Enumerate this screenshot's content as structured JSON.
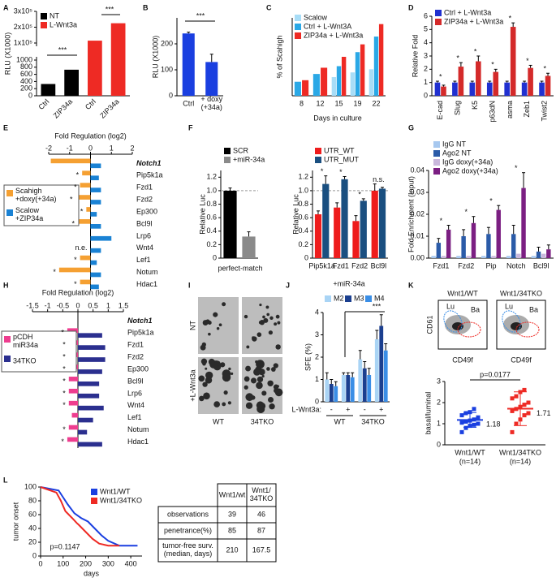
{
  "panels": [
    "A",
    "B",
    "C",
    "D",
    "E",
    "F",
    "G",
    "H",
    "I",
    "J",
    "K",
    "L"
  ],
  "chart_data": [
    {
      "type": "bar",
      "ylabel": "RLU (X1000)",
      "categories": [
        "Ctrl",
        "ZIP34a",
        "Ctrl",
        "ZIP34a"
      ],
      "series": [
        {
          "name": "NT",
          "color": "#000000",
          "values": [
            330,
            730,
            null,
            null
          ]
        },
        {
          "name": "L-Wnt3a",
          "color": "#ee2a24",
          "values": [
            null,
            null,
            115000,
            225000
          ]
        }
      ],
      "ylim": [
        0,
        300000
      ],
      "ybreak": [
        1000,
        100000
      ],
      "yticks": [
        0,
        200,
        400,
        600,
        800,
        1000,
        {
          "value": 100000,
          "label": "1x10⁵"
        },
        {
          "value": 200000,
          "label": "2x10⁵"
        },
        {
          "value": 300000,
          "label": "3x10⁵"
        }
      ],
      "annotations": [
        "***",
        "***"
      ]
    },
    {
      "type": "bar",
      "ylabel": "RLU (X1000)",
      "categories": [
        "Ctrl",
        "+ doxy\n(+34a)"
      ],
      "values": [
        240,
        130
      ],
      "errors": [
        5,
        30
      ],
      "color": "#1a3fe0",
      "ylim": [
        0,
        300
      ],
      "yticks": [
        0,
        100,
        200
      ],
      "annotations": [
        "***"
      ]
    },
    {
      "type": "bar",
      "ylabel": "% of Scahigh",
      "xlabel": "Days in culture",
      "categories": [
        "8",
        "12",
        "15",
        "19",
        "22"
      ],
      "series": [
        {
          "name": "Scalow",
          "color": "#a8ddf7",
          "values": [
            null,
            null,
            12,
            15,
            17
          ]
        },
        {
          "name": "Ctrl + L-Wnt3A",
          "color": "#2aa8e6",
          "values": [
            9,
            14,
            19,
            28,
            38
          ]
        },
        {
          "name": "ZIP34a + L-Wnt3a",
          "color": "#ee2a24",
          "values": [
            10,
            18,
            25,
            33,
            46
          ]
        }
      ],
      "ylim": [
        0,
        50
      ]
    },
    {
      "type": "bar",
      "ylabel": "Relative Fold",
      "categories": [
        "E-cad",
        "Slug",
        "K5",
        "p63dN",
        "asma",
        "Zeb1",
        "Twist2"
      ],
      "series": [
        {
          "name": "Ctrl + L-Wnt3a",
          "color": "#2030d0",
          "values": [
            1,
            1,
            1,
            1,
            1,
            1,
            1
          ],
          "errors": [
            0.1,
            0.1,
            0.1,
            0.1,
            0.1,
            0.1,
            0.1
          ]
        },
        {
          "name": "ZIP34a + L-Wnt3a",
          "color": "#d42a2a",
          "values": [
            0.7,
            2.2,
            2.6,
            1.8,
            5.2,
            2.1,
            1.5
          ],
          "errors": [
            0.1,
            0.3,
            0.4,
            0.2,
            0.3,
            0.2,
            0.2
          ]
        }
      ],
      "ylim": [
        0,
        6
      ],
      "yticks": [
        0,
        1,
        2,
        3,
        4,
        5,
        6
      ],
      "annotations": [
        "*",
        "*",
        "*",
        "*",
        "*",
        "*",
        "*"
      ]
    },
    {
      "type": "hbar",
      "xlabel": "Fold Regulation (log2)",
      "categories": [
        "Notch1",
        "Pip5k1a",
        "Fzd1",
        "Fzd2",
        "Ep300",
        "Bcl9l",
        "Lrp6",
        "Wnt4",
        "Lef1",
        "Notum",
        "Hdac1"
      ],
      "series": [
        {
          "name": "Scahigh\n+doxy(+34a)",
          "color": "#f5a032",
          "values": [
            -1.9,
            -0.4,
            -0.5,
            -0.7,
            -0.2,
            -0.6,
            null,
            null,
            -0.5,
            -1.5,
            -0.5
          ]
        },
        {
          "name": "Scalow\n+ZIP34a",
          "color": "#1a82d4",
          "values": [
            0.5,
            0.4,
            0.5,
            0.5,
            0.3,
            0.5,
            1.0,
            0.5,
            0.3,
            0.5,
            0.4
          ]
        }
      ],
      "xlim": [
        -2,
        2
      ],
      "xticks": [
        -2,
        -1,
        0,
        1,
        2
      ],
      "annotations": [
        "*",
        "*",
        "*",
        "*",
        "*",
        "n.e.",
        "*",
        "*",
        "*"
      ]
    },
    {
      "type": "bar",
      "ylabel": "Relative Luc",
      "xlabel": "perfect-match",
      "categories": [
        "",
        ""
      ],
      "series": [
        {
          "name": "SCR",
          "color": "#000000",
          "values": [
            1.0,
            null
          ],
          "errors": [
            0.04,
            null
          ]
        },
        {
          "name": "+miR-34a",
          "color": "#8a8a8a",
          "values": [
            null,
            0.32
          ],
          "errors": [
            null,
            0.07
          ]
        }
      ],
      "ylim": [
        0,
        1.3
      ],
      "yticks": [
        0,
        0.2,
        0.4,
        0.6,
        0.8,
        {
          "value": 1,
          "label": "1.0"
        },
        1.2
      ],
      "reference_line": 1
    },
    {
      "type": "bar",
      "ylabel": "Relative Luc",
      "xlabel": "+miR-34a",
      "categories": [
        "Pip5k1a",
        "Fzd1",
        "Fzd2",
        "Bcl9l"
      ],
      "series": [
        {
          "name": "UTR_WT",
          "color": "#ee1c1c",
          "values": [
            0.65,
            0.75,
            0.55,
            1.0
          ],
          "errors": [
            0.05,
            0.07,
            0.08,
            0.1
          ]
        },
        {
          "name": "UTR_MUT",
          "color": "#1a4f80",
          "values": [
            1.1,
            1.17,
            0.85,
            1.03
          ],
          "errors": [
            0.12,
            0.04,
            0.03,
            0.02
          ]
        }
      ],
      "ylim": [
        0,
        1.3
      ],
      "yticks": [
        0,
        0.2,
        0.4,
        0.6,
        0.8,
        {
          "value": 1,
          "label": "1.0"
        },
        1.2
      ],
      "reference_line": 1,
      "annotations": [
        "*",
        "*",
        "*",
        "n.s."
      ]
    },
    {
      "type": "bar",
      "ylabel": "Fold Enrichment (Input)",
      "categories": [
        "Fzd1",
        "Fzd2",
        "Pip",
        "Notch",
        "Bcl9l"
      ],
      "series": [
        {
          "name": "IgG NT",
          "color": "#a7c8ef",
          "values": [
            0.001,
            0.001,
            0.001,
            0.001,
            0.001
          ]
        },
        {
          "name": "Ago2 NT",
          "color": "#2b5ba8",
          "values": [
            0.007,
            0.01,
            0.011,
            0.011,
            0.003
          ],
          "errors": [
            0.002,
            0.003,
            0.003,
            0.004,
            0.002
          ]
        },
        {
          "name": "IgG doxy(+34a)",
          "color": "#c9b8dc",
          "values": [
            0.001,
            0.001,
            0.001,
            0.002,
            0.002
          ]
        },
        {
          "name": "Ago2 doxy(+34a)",
          "color": "#7b1f82",
          "values": [
            0.013,
            0.016,
            0.022,
            0.032,
            0.004
          ],
          "errors": [
            0.002,
            0.003,
            0.002,
            0.007,
            0.002
          ]
        }
      ],
      "ylim": [
        0,
        0.04
      ],
      "yticks": [
        {
          "value": 0,
          "label": "0.00"
        },
        {
          "value": 0.01,
          "label": "0.01"
        },
        {
          "value": 0.02,
          "label": "0.02"
        },
        {
          "value": 0.03,
          "label": "0.03"
        },
        {
          "value": 0.04,
          "label": "0.04"
        }
      ],
      "annotations": [
        "*",
        "*",
        "*",
        "*"
      ]
    },
    {
      "type": "hbar",
      "xlabel": "Fold Regulation (log2)",
      "categories": [
        "Notch1",
        "Pip5k1a",
        "Fzd1",
        "Fzd2",
        "Ep300",
        "Bcl9l",
        "Lrp6",
        "Wnt4",
        "Lef1",
        "Notum",
        "Hdac1"
      ],
      "series": [
        {
          "name": "pCDH\nmiR34a",
          "color": "#ee3d8f",
          "values": [
            null,
            -0.35,
            -0.3,
            -0.3,
            -0.3,
            -0.3,
            -0.3,
            -0.3,
            -0.2,
            -0.3,
            -0.35
          ]
        },
        {
          "name": "34TKO",
          "color": "#2b2f8f",
          "values": [
            null,
            0.8,
            0.9,
            0.9,
            0.8,
            0.7,
            0.7,
            0.85,
            0.5,
            0.3,
            0.8
          ]
        }
      ],
      "xlim": [
        -1.5,
        1.5
      ],
      "xticks": [
        -1.5,
        -1,
        -0.5,
        0,
        0.5,
        1,
        1.5
      ],
      "annotations": [
        "*",
        "*",
        "*",
        "*",
        "*",
        "*",
        "*",
        "*",
        "*"
      ]
    },
    {
      "type": "bar",
      "ylabel": "SFE (%)",
      "xlabel": "L-Wnt3a:",
      "categories": [
        "-",
        "+",
        "-",
        "+"
      ],
      "group_labels": [
        "WT",
        "34TKO"
      ],
      "series": [
        {
          "name": "M2",
          "color": "#a9d4f5",
          "values": [
            1.0,
            1.2,
            1.9,
            2.8
          ],
          "errors": [
            0.3,
            0.1,
            0.4,
            0.4
          ]
        },
        {
          "name": "M3",
          "color": "#1b3f8f",
          "values": [
            0.8,
            1.2,
            1.5,
            3.4
          ],
          "errors": [
            0.2,
            0.1,
            0.3,
            0.5
          ]
        },
        {
          "name": "M4",
          "color": "#3a8ee6",
          "values": [
            0.7,
            1.1,
            1.2,
            2.3
          ],
          "errors": [
            0.2,
            0.2,
            0.3,
            0.3
          ]
        }
      ],
      "ylim": [
        0,
        4
      ],
      "yticks": [
        0,
        1,
        2,
        3,
        4
      ],
      "annotations": [
        "***"
      ]
    },
    {
      "type": "dot",
      "ylabel": "basal/luminal",
      "groups": [
        {
          "name": "Wnt1/WT",
          "n_label": "(n=14)",
          "color": "#1a3fe0",
          "values": [
            0.6,
            0.8,
            0.9,
            0.95,
            1.0,
            1.05,
            1.1,
            1.15,
            1.2,
            1.3,
            1.4,
            1.5,
            1.55,
            1.7
          ],
          "mean": 1.18,
          "sd": 0.35
        },
        {
          "name": "Wnt1/34TKO",
          "n_label": "(n=14)",
          "color": "#ee2a24",
          "values": [
            0.6,
            1.0,
            1.2,
            1.4,
            1.5,
            1.6,
            1.7,
            1.8,
            1.9,
            2.0,
            2.2,
            2.3,
            2.5,
            2.6
          ],
          "mean": 1.71,
          "sd": 0.8
        }
      ],
      "ylim": [
        0,
        3
      ],
      "yticks": [
        0,
        1,
        2,
        3
      ],
      "annotations": [
        "p=0.0177"
      ]
    },
    {
      "type": "km",
      "ylabel": "tumor onset",
      "xlabel": "days",
      "series": [
        {
          "name": "Wnt1/WT",
          "color": "#1a3fe0",
          "x": [
            0,
            80,
            100,
            120,
            150,
            180,
            210,
            240,
            270,
            300,
            350,
            400,
            430
          ],
          "values": [
            100,
            95,
            85,
            75,
            62,
            55,
            50,
            40,
            30,
            22,
            15,
            15,
            15
          ]
        },
        {
          "name": "Wnt1/34TKO",
          "color": "#ee2a24",
          "x": [
            0,
            70,
            90,
            110,
            140,
            160,
            170,
            200,
            230,
            260,
            300,
            350
          ],
          "values": [
            100,
            92,
            80,
            65,
            55,
            48,
            45,
            35,
            25,
            18,
            15,
            15
          ]
        }
      ],
      "xlim": [
        0,
        450
      ],
      "xticks": [
        0,
        100,
        200,
        300,
        400
      ],
      "ylim": [
        0,
        100
      ],
      "yticks": [
        0,
        20,
        40,
        60,
        80,
        100
      ],
      "annotations": [
        "p=0.1147"
      ]
    }
  ],
  "image_panel": {
    "rows": [
      "NT",
      "+L-Wnt3a"
    ],
    "cols": [
      "WT",
      "34TKO"
    ]
  },
  "flow_panel": {
    "titles": [
      "Wnt1/WT",
      "Wnt1/34TKO"
    ],
    "ylabel": "CD61",
    "xlabel": "CD49f",
    "gates": [
      "Lu",
      "Ba"
    ]
  },
  "table": {
    "header": [
      "Wnt1/wt",
      "Wnt1/\n34TKO"
    ],
    "rows": [
      [
        "observations",
        39,
        46
      ],
      [
        "penetrance(%)",
        85,
        87
      ],
      [
        "tumor-free surv.\n(median, days)",
        210,
        167.5
      ]
    ]
  }
}
